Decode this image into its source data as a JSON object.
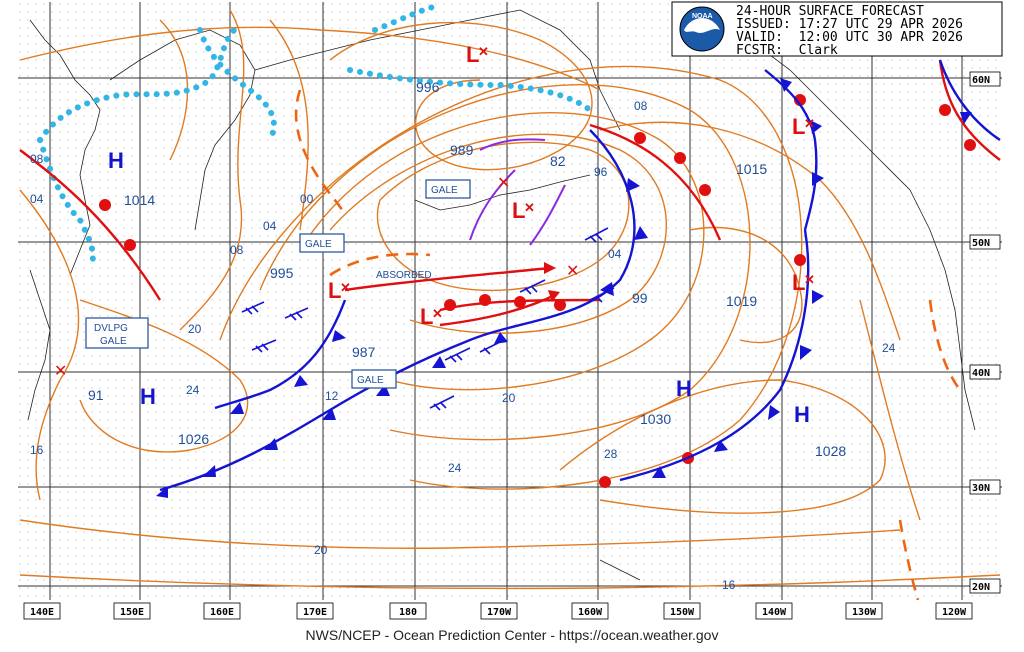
{
  "header": {
    "line1": "24-HOUR SURFACE FORECAST",
    "line2": "ISSUED: 17:27 UTC 29 APR 2026",
    "line3": "VALID:  12:00 UTC 30 APR 2026",
    "line4": "FCSTR:  Clark",
    "logo_text": "NOAA"
  },
  "footer": "NWS/NCEP - Ocean Prediction Center - https://ocean.weather.gov",
  "longitude_ticks": [
    "140E",
    "150E",
    "160E",
    "170E",
    "180",
    "170W",
    "160W",
    "150W",
    "140W",
    "130W",
    "120W"
  ],
  "latitude_ticks": [
    "60N",
    "50N",
    "40N",
    "30N",
    "20N"
  ],
  "centers": [
    {
      "type": "H",
      "pressure": "1014"
    },
    {
      "type": "H",
      "pressure": "1026"
    },
    {
      "type": "H",
      "pressure": "1030"
    },
    {
      "type": "H",
      "pressure": "1028"
    },
    {
      "type": "L",
      "pressure": "996"
    },
    {
      "type": "L",
      "pressure": "989"
    },
    {
      "type": "L",
      "pressure": "995"
    },
    {
      "type": "L",
      "pressure": "987"
    },
    {
      "type": "L",
      "pressure": "1015"
    },
    {
      "type": "L",
      "pressure": "1019"
    }
  ],
  "isobar_labels": [
    "08",
    "04",
    "00",
    "04",
    "08",
    "20",
    "24",
    "16",
    "91",
    "82",
    "96",
    "04",
    "99",
    "12",
    "20",
    "24",
    "28",
    "20",
    "16",
    "24",
    "08"
  ],
  "labels": {
    "gale1": "GALE",
    "gale2": "GALE",
    "gale3": "GALE",
    "dvlpg1": "DVLPG",
    "dvlpg2": "GALE",
    "absorbed": "ABSORBED"
  },
  "colors": {
    "isobar": "#e07b22",
    "cold_front": "#1414d2",
    "warm_front": "#e01010",
    "ice_edge": "#33b5e5",
    "trough": "#ee6611",
    "occluded": "#8a2be2",
    "low": "#dd1111",
    "high": "#1414c8",
    "grid": "#000000"
  }
}
